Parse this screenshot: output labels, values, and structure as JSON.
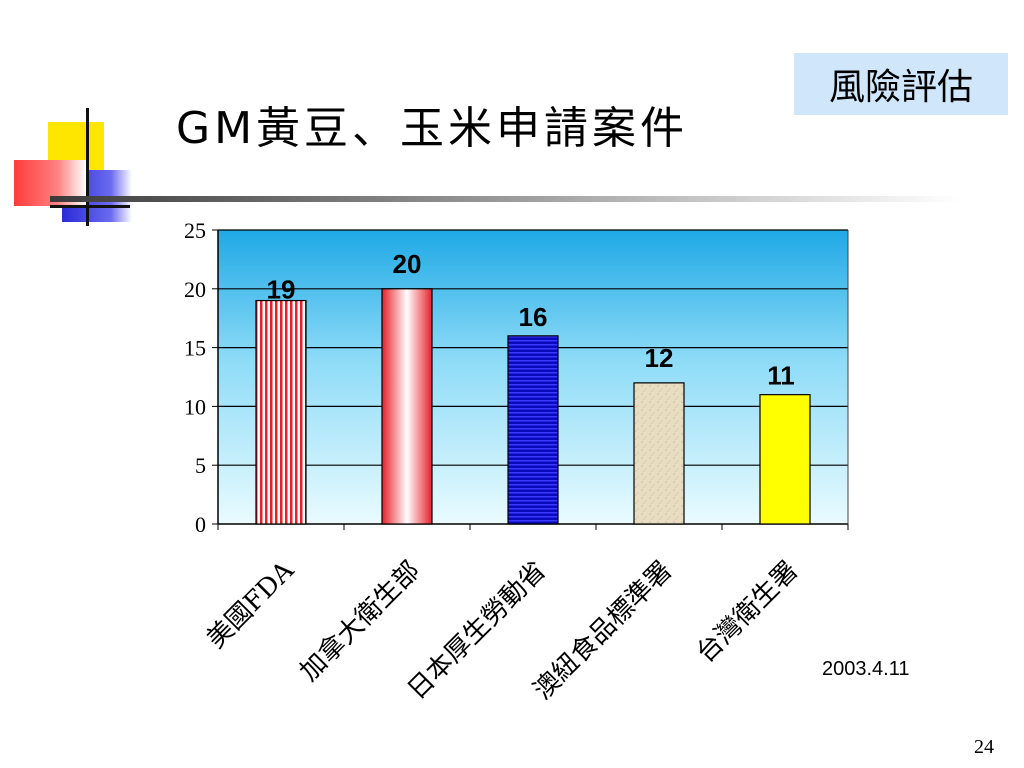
{
  "slide": {
    "title": "GM黃豆、玉米申請案件",
    "badge": "風險評估",
    "date": "2003.4.11",
    "page_number": "24"
  },
  "colors": {
    "plot_top": "#1fa9e6",
    "plot_bottom": "#e9fbff",
    "deco_yellow": "#ffe600",
    "deco_red": "#ff3b3b",
    "deco_blue": "#2a2ad8"
  },
  "chart_data": {
    "type": "bar",
    "categories": [
      "美國FDA",
      "加拿大衛生部",
      "日本厚生勞動省",
      "澳紐食品標準署",
      "台灣衛生署"
    ],
    "values": [
      19,
      20,
      16,
      12,
      11
    ],
    "data_labels": [
      "19",
      "20",
      "16",
      "12",
      "11"
    ],
    "ylim": [
      0,
      25
    ],
    "yticks": [
      0,
      5,
      10,
      15,
      20,
      25
    ],
    "grid": true,
    "legend": "none",
    "bar_fills": [
      "red-stripes",
      "red-gradient",
      "blue-stripes",
      "sand",
      "yellow"
    ],
    "title": "",
    "xlabel": "",
    "ylabel": ""
  }
}
